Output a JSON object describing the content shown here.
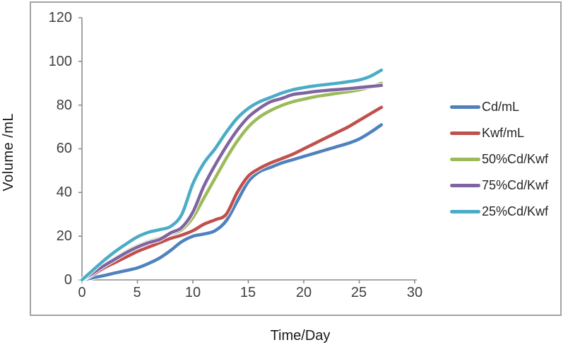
{
  "chart_data": {
    "type": "line",
    "title": "",
    "xlabel": "Time/Day",
    "ylabel": "Volume /mL",
    "xlim": [
      0,
      30
    ],
    "ylim": [
      0,
      120
    ],
    "x_ticks": [
      0,
      5,
      10,
      15,
      20,
      25,
      30
    ],
    "y_ticks": [
      0,
      20,
      40,
      60,
      80,
      100,
      120
    ],
    "grid": false,
    "legend_position": "right",
    "x": [
      0,
      1,
      2,
      3,
      4,
      5,
      6,
      7,
      8,
      9,
      10,
      11,
      12,
      13,
      14,
      15,
      16,
      17,
      18,
      19,
      20,
      21,
      22,
      23,
      24,
      25,
      26,
      27
    ],
    "series": [
      {
        "name": "Cd/mL",
        "color": "#4F81BD",
        "values": [
          0,
          1,
          2,
          3.2,
          4.3,
          5.5,
          7.5,
          10,
          13.5,
          17.5,
          20,
          21,
          22.5,
          27,
          36,
          45,
          49.5,
          51.5,
          53.5,
          55,
          56.5,
          58,
          59.5,
          61,
          62.5,
          64.5,
          67.5,
          71
        ]
      },
      {
        "name": "Kwf/mL",
        "color": "#C0504D",
        "values": [
          0,
          2.5,
          5.5,
          8,
          10.5,
          13,
          15,
          17,
          19,
          20.5,
          22.5,
          25.5,
          27.5,
          30,
          40,
          47.5,
          51,
          53.5,
          55.5,
          57.5,
          60,
          62.5,
          65,
          67.5,
          70,
          73,
          76,
          79
        ]
      },
      {
        "name": "50%Cd/Kwf",
        "color": "#9BBB59",
        "values": [
          0,
          3.5,
          7,
          10,
          13,
          15.5,
          17.5,
          19,
          21,
          23,
          28.5,
          37.5,
          46.5,
          55.5,
          63.5,
          70,
          74.5,
          77.5,
          79.8,
          81.5,
          82.7,
          83.8,
          84.6,
          85.4,
          86.1,
          87,
          88.3,
          90
        ]
      },
      {
        "name": "75%Cd/Kwf",
        "color": "#8064A2",
        "values": [
          0,
          3.2,
          6.5,
          9.5,
          12.5,
          15,
          17,
          18.5,
          21.5,
          24,
          31,
          43,
          52.5,
          61,
          68.5,
          74.5,
          78.5,
          81.5,
          83,
          84.8,
          85.5,
          86.2,
          86.7,
          87.1,
          87.5,
          88,
          88.5,
          89
        ]
      },
      {
        "name": "25%Cd/Kwf",
        "color": "#4BACC6",
        "values": [
          0,
          4.5,
          9,
          13,
          16.5,
          19.7,
          21.8,
          23,
          24.5,
          30,
          44,
          53.5,
          60,
          67.5,
          74,
          78.5,
          81.5,
          83.5,
          85.5,
          87,
          88,
          88.8,
          89.4,
          90,
          90.7,
          91.5,
          93.2,
          96
        ]
      }
    ]
  },
  "colors": {
    "frame_border": "#a3a3a3",
    "axis_line": "#8c8c8c",
    "tick_text": "#3f3f3f",
    "title_text": "#1a1a1a"
  }
}
